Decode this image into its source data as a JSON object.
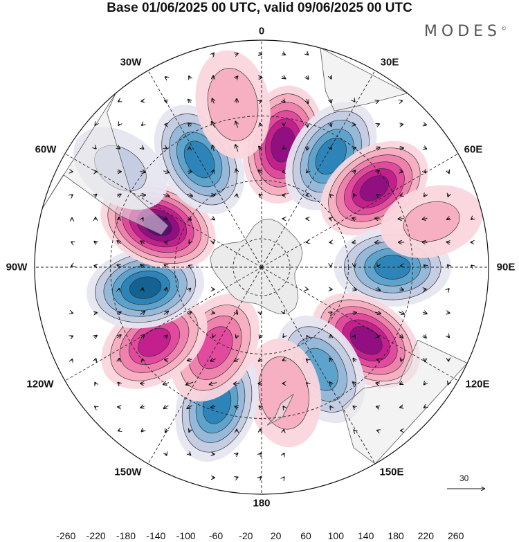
{
  "title": "Base 01/06/2025 00 UTC, valid 09/06/2025 00 UTC",
  "brand": "MODES",
  "brand_mark": "©",
  "longitude_labels": {
    "lon_0": "0",
    "lon_30e": "30E",
    "lon_60e": "60E",
    "lon_90e": "90E",
    "lon_120e": "120E",
    "lon_150e": "150E",
    "lon_180": "180",
    "lon_150w": "150W",
    "lon_120w": "120W",
    "lon_90w": "90W",
    "lon_60w": "60W",
    "lon_30w": "30W"
  },
  "reference_vector_label": "30",
  "colorbar": {
    "tick_labels": [
      "-260",
      "-220",
      "-180",
      "-140",
      "-100",
      "-60",
      "-20",
      "20",
      "60",
      "100",
      "140",
      "180",
      "220",
      "260"
    ],
    "colors": [
      "#0b3550",
      "#12608f",
      "#2a83b6",
      "#5aa1cb",
      "#93b6d8",
      "#c3cbe2",
      "#e6e6f1",
      "#ffffff",
      "#fbd6dd",
      "#f5aec0",
      "#ee7fab",
      "#e0479c",
      "#c11d8c",
      "#8f0f81",
      "#5a0c6e"
    ]
  },
  "map_data": {
    "projection": "south polar stereographic",
    "land_color": "#e9e9e9",
    "anomalies": [
      {
        "lon": 10,
        "lat": -48,
        "value": 240
      },
      {
        "lon": 32,
        "lat": -46,
        "value": -200
      },
      {
        "lon": 55,
        "lat": -44,
        "value": 230
      },
      {
        "lon": 90,
        "lat": -46,
        "value": -190
      },
      {
        "lon": 125,
        "lat": -47,
        "value": 240
      },
      {
        "lon": 150,
        "lat": -50,
        "value": -160
      },
      {
        "lon": 170,
        "lat": -47,
        "value": 90
      },
      {
        "lon": -162,
        "lat": -42,
        "value": -200
      },
      {
        "lon": -150,
        "lat": -58,
        "value": 160
      },
      {
        "lon": -125,
        "lat": -46,
        "value": 190
      },
      {
        "lon": -100,
        "lat": -50,
        "value": -230
      },
      {
        "lon": -68,
        "lat": -52,
        "value": 270
      },
      {
        "lon": -30,
        "lat": -48,
        "value": -200
      },
      {
        "lon": -10,
        "lat": -36,
        "value": 90
      },
      {
        "lon": -55,
        "lat": -34,
        "value": -60
      },
      {
        "lon": 75,
        "lat": -33,
        "value": 60
      }
    ]
  }
}
